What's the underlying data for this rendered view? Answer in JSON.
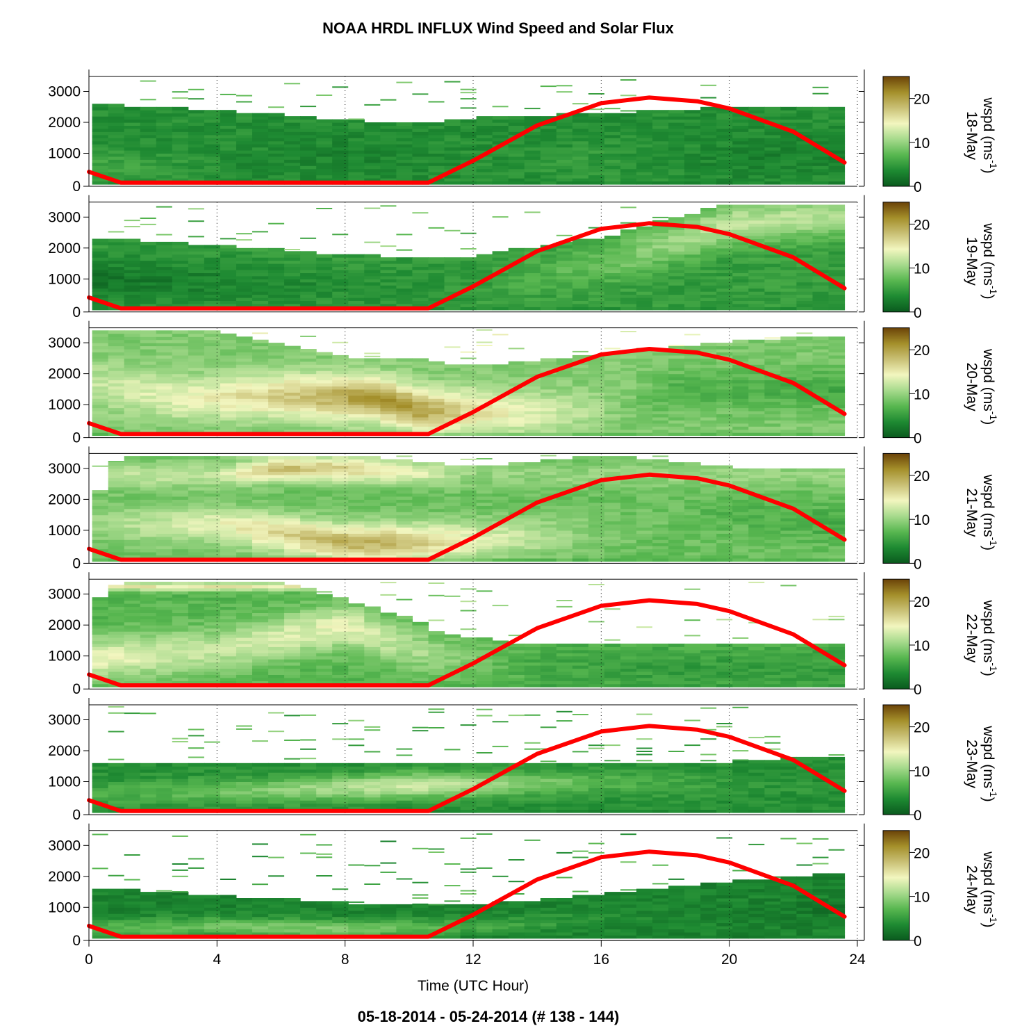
{
  "figure": {
    "title": "NOAA HRDL INFLUX Wind Speed and Solar Flux",
    "footer": "05-18-2014 - 05-24-2014   (# 138 - 144)",
    "xlabel": "Time (UTC Hour)"
  },
  "colorbar": {
    "label_main": "wspd (ms",
    "label_sup": "-1",
    "label_end": ")",
    "ticks": [
      "0",
      "10",
      "20"
    ],
    "range": [
      0,
      25
    ],
    "stops": [
      "#0a5a1e",
      "#1e8a32",
      "#58b750",
      "#a6da8c",
      "#f2f6bf",
      "#c9c075",
      "#a48f2a",
      "#6b4308"
    ]
  },
  "solar_color": "#ff0000",
  "chart_data": {
    "type": "heatmap",
    "title": "NOAA HRDL INFLUX Wind Speed and Solar Flux",
    "xlabel": "Time (UTC Hour)",
    "ylabel": "",
    "xlim": [
      0,
      24
    ],
    "ylim": [
      0,
      3600
    ],
    "x_ticks": [
      "0",
      "4",
      "8",
      "12",
      "16",
      "20",
      "24"
    ],
    "y_ticks": [
      "0",
      "1000",
      "2000",
      "3000"
    ],
    "colorbar_label": "wspd (ms-1)",
    "colorbar_range": [
      0,
      25
    ],
    "vertical_gridlines": [
      4,
      8,
      12,
      16,
      20
    ],
    "solar_flux_curve": {
      "color": "red",
      "points": [
        [
          0,
          400
        ],
        [
          1,
          50
        ],
        [
          10.6,
          50
        ],
        [
          12,
          760
        ],
        [
          14,
          1900
        ],
        [
          16,
          2620
        ],
        [
          17.5,
          2800
        ],
        [
          19,
          2680
        ],
        [
          20,
          2450
        ],
        [
          22,
          1700
        ],
        [
          23.6,
          700
        ]
      ]
    },
    "panels": [
      {
        "date": "18-May",
        "summary": "Mostly low speeds (1-6 m/s), layer top ~2500 m falling to ~1900 m near 10 UTC and rising to ~2400 m",
        "layer_top": [
          [
            0,
            2550
          ],
          [
            4,
            2350
          ],
          [
            8,
            2050
          ],
          [
            10,
            1900
          ],
          [
            12,
            2100
          ],
          [
            16,
            2250
          ],
          [
            20,
            2450
          ],
          [
            23.6,
            2450
          ]
        ],
        "core": [
          {
            "x": [
              0,
              4,
              8,
              12,
              16,
              20,
              23.6
            ],
            "z": [
              500,
              700,
              1000,
              900,
              700,
              900,
              1000
            ],
            "width": 1200,
            "speed": [
              6,
              4,
              3,
              4,
              5,
              3,
              3
            ]
          }
        ],
        "base_speed": 4
      },
      {
        "date": "19-May",
        "summary": "Low speeds near surface, moderate winds above 2000 m after 14 UTC",
        "layer_top": [
          [
            0,
            2300
          ],
          [
            4,
            2050
          ],
          [
            8,
            1750
          ],
          [
            10,
            1650
          ],
          [
            12,
            1700
          ],
          [
            16,
            2300
          ],
          [
            20,
            3400
          ],
          [
            23.6,
            3400
          ]
        ],
        "core": [
          {
            "x": [
              0,
              4,
              8,
              12,
              16,
              20,
              23.6
            ],
            "z": [
              1000,
              900,
              700,
              800,
              1500,
              2800,
              3100
            ],
            "width": 1400,
            "speed": [
              2,
              3,
              4,
              5,
              8,
              12,
              11
            ]
          }
        ],
        "base_speed": 5
      },
      {
        "date": "20-May",
        "summary": "Strong jet (16-21 m/s) near 500-1500 m from 5-11 UTC, weaker flow later",
        "layer_top": [
          [
            0,
            3400
          ],
          [
            4,
            3300
          ],
          [
            8,
            2500
          ],
          [
            10,
            2450
          ],
          [
            12,
            2200
          ],
          [
            16,
            2600
          ],
          [
            20,
            3000
          ],
          [
            23.6,
            3200
          ]
        ],
        "core": [
          {
            "x": [
              0,
              3,
              6,
              9,
              10.5,
              12,
              15,
              18,
              23.6
            ],
            "z": [
              1700,
              1200,
              1300,
              1200,
              800,
              800,
              700,
              1500,
              1500
            ],
            "width": 1400,
            "speed": [
              12,
              14,
              17,
              21,
              20,
              16,
              12,
              7,
              6
            ]
          }
        ],
        "base_speed": 9
      },
      {
        "date": "21-May",
        "summary": "Jet near 700 m (up to 21 m/s) around 8-11 UTC, upper winds near 3000 m",
        "layer_top": [
          [
            0,
            1700
          ],
          [
            1,
            3400
          ],
          [
            8,
            3400
          ],
          [
            12,
            3000
          ],
          [
            16,
            3400
          ],
          [
            20,
            3000
          ],
          [
            23.6,
            3000
          ]
        ],
        "core": [
          {
            "x": [
              0,
              4,
              8,
              10,
              12,
              16,
              20,
              23.6
            ],
            "z": [
              1200,
              1200,
              600,
              600,
              700,
              900,
              1600,
              1200
            ],
            "width": 1200,
            "speed": [
              10,
              14,
              19,
              18,
              14,
              9,
              7,
              6
            ]
          },
          {
            "x": [
              4,
              6,
              8,
              10,
              12
            ],
            "z": [
              2800,
              3000,
              3000,
              2900,
              2800
            ],
            "width": 800,
            "speed": [
              12,
              18,
              17,
              14,
              10
            ]
          }
        ],
        "base_speed": 8
      },
      {
        "date": "22-May",
        "summary": "Moderate winds (10-18 m/s) aloft before 11 UTC, low speeds below 1500 m after",
        "layer_top": [
          [
            0,
            2500
          ],
          [
            1,
            3400
          ],
          [
            6,
            3400
          ],
          [
            10,
            2200
          ],
          [
            11,
            1700
          ],
          [
            14,
            1300
          ],
          [
            20,
            1400
          ],
          [
            23.6,
            1400
          ]
        ],
        "core": [
          {
            "x": [
              0,
              4,
              8,
              11,
              14,
              18,
              23.6
            ],
            "z": [
              900,
              1200,
              2000,
              1000,
              700,
              600,
              600
            ],
            "width": 1400,
            "speed": [
              14,
              12,
              14,
              10,
              6,
              5,
              5
            ]
          },
          {
            "x": [
              14,
              16,
              18,
              20
            ],
            "z": [
              3250,
              3200,
              3150,
              3050
            ],
            "width": 250,
            "speed": [
              15,
              19,
              18,
              15
            ]
          }
        ],
        "base_speed": 7
      },
      {
        "date": "23-May",
        "summary": "Shallow layer below ~1600 m, peak 11-13 m/s near 800 m around 8-10 UTC",
        "layer_top": [
          [
            0,
            1550
          ],
          [
            4,
            1500
          ],
          [
            8,
            1600
          ],
          [
            12,
            1550
          ],
          [
            16,
            1600
          ],
          [
            20,
            1600
          ],
          [
            23.6,
            1800
          ]
        ],
        "core": [
          {
            "x": [
              0,
              4,
              8,
              10,
              12,
              16,
              20,
              23.6
            ],
            "z": [
              600,
              700,
              800,
              900,
              900,
              1000,
              900,
              800
            ],
            "width": 800,
            "speed": [
              6,
              8,
              11,
              13,
              11,
              7,
              5,
              4
            ]
          },
          {
            "x": [
              4,
              5,
              6,
              7
            ],
            "z": [
              2950,
              3050,
              3000,
              2900
            ],
            "width": 250,
            "speed": [
              17,
              19,
              18,
              15
            ]
          }
        ],
        "base_speed": 4
      },
      {
        "date": "24-May",
        "summary": "Low speeds below ~1600 m deepening to ~2000 m by 23 UTC, thin layer near 2300 m",
        "layer_top": [
          [
            0,
            1600
          ],
          [
            4,
            1350
          ],
          [
            8,
            1100
          ],
          [
            11,
            1000
          ],
          [
            14,
            1200
          ],
          [
            18,
            1600
          ],
          [
            23.6,
            2100
          ]
        ],
        "core": [
          {
            "x": [
              0,
              4,
              8,
              12,
              16,
              20,
              23.6
            ],
            "z": [
              300,
              400,
              300,
              400,
              600,
              800,
              1000
            ],
            "width": 600,
            "speed": [
              7,
              8,
              9,
              6,
              4,
              3,
              2
            ]
          }
        ],
        "base_speed": 3
      }
    ]
  }
}
